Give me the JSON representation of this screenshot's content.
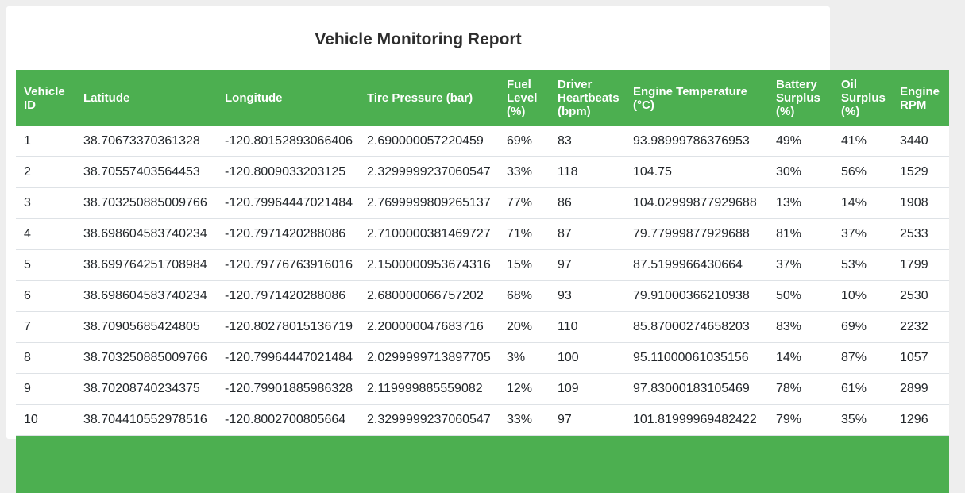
{
  "page": {
    "title": "Vehicle Monitoring Report"
  },
  "colors": {
    "header_bg": "#4caf50",
    "header_text": "#ffffff",
    "row_text": "#212529",
    "row_border": "#dee2e6",
    "page_bg": "#eeeeee"
  },
  "table": {
    "columns": [
      "Vehicle ID",
      "Latitude",
      "Longitude",
      "Tire Pressure (bar)",
      "Fuel Level (%)",
      "Driver Heartbeats (bpm)",
      "Engine Temperature (°C)",
      "Battery Surplus (%)",
      "Oil Surplus (%)",
      "Engine RPM"
    ],
    "rows": [
      [
        "1",
        "38.70673370361328",
        "-120.80152893066406",
        "2.690000057220459",
        "69%",
        "83",
        "93.98999786376953",
        "49%",
        "41%",
        "3440"
      ],
      [
        "2",
        "38.70557403564453",
        "-120.8009033203125",
        "2.3299999237060547",
        "33%",
        "118",
        "104.75",
        "30%",
        "56%",
        "1529"
      ],
      [
        "3",
        "38.703250885009766",
        "-120.79964447021484",
        "2.7699999809265137",
        "77%",
        "86",
        "104.02999877929688",
        "13%",
        "14%",
        "1908"
      ],
      [
        "4",
        "38.698604583740234",
        "-120.7971420288086",
        "2.7100000381469727",
        "71%",
        "87",
        "79.77999877929688",
        "81%",
        "37%",
        "2533"
      ],
      [
        "5",
        "38.699764251708984",
        "-120.79776763916016",
        "2.1500000953674316",
        "15%",
        "97",
        "87.5199966430664",
        "37%",
        "53%",
        "1799"
      ],
      [
        "6",
        "38.698604583740234",
        "-120.7971420288086",
        "2.680000066757202",
        "68%",
        "93",
        "79.91000366210938",
        "50%",
        "10%",
        "2530"
      ],
      [
        "7",
        "38.70905685424805",
        "-120.80278015136719",
        "2.200000047683716",
        "20%",
        "110",
        "85.87000274658203",
        "83%",
        "69%",
        "2232"
      ],
      [
        "8",
        "38.703250885009766",
        "-120.79964447021484",
        "2.0299999713897705",
        "3%",
        "100",
        "95.11000061035156",
        "14%",
        "87%",
        "1057"
      ],
      [
        "9",
        "38.70208740234375",
        "-120.79901885986328",
        "2.119999885559082",
        "12%",
        "109",
        "97.83000183105469",
        "78%",
        "61%",
        "2899"
      ],
      [
        "10",
        "38.704410552978516",
        "-120.8002700805664",
        "2.3299999237060547",
        "33%",
        "97",
        "101.81999969482422",
        "79%",
        "35%",
        "1296"
      ]
    ]
  }
}
